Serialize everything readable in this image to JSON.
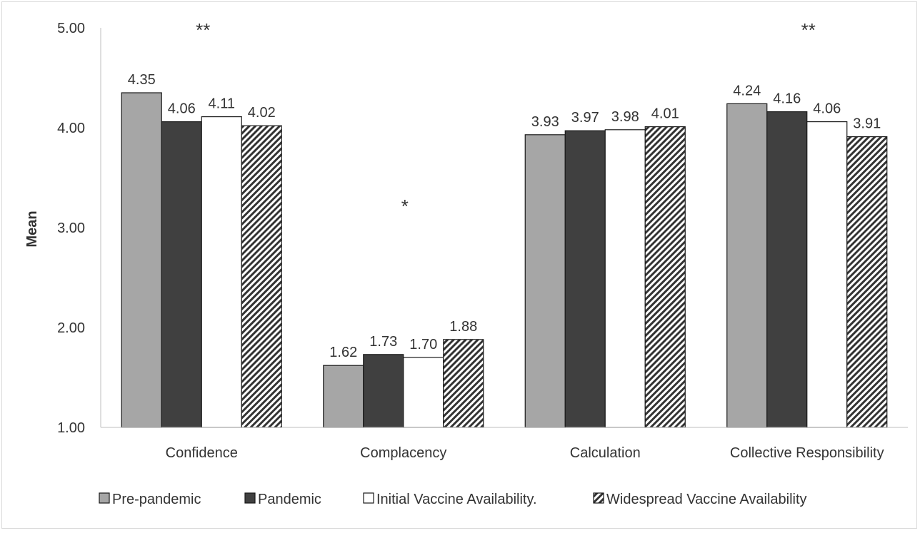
{
  "chart_data": {
    "type": "bar",
    "title": "",
    "xlabel": "",
    "ylabel": "Mean",
    "ylim": [
      1.0,
      5.0
    ],
    "yticks": [
      "1.00",
      "2.00",
      "3.00",
      "4.00",
      "5.00"
    ],
    "grid": false,
    "legend_position": "bottom",
    "categories": [
      "Confidence",
      "Complacency",
      "Calculation",
      "Collective Responsibility"
    ],
    "significance": [
      "**",
      "*",
      "",
      "**"
    ],
    "series": [
      {
        "name": "Pre-pandemic",
        "values": [
          4.35,
          1.62,
          3.93,
          4.24
        ],
        "labels": [
          "4.35",
          "1.62",
          "3.93",
          "4.24"
        ],
        "color": "#a6a6a6",
        "pattern": "solid"
      },
      {
        "name": "Pandemic",
        "values": [
          4.06,
          1.73,
          3.97,
          4.16
        ],
        "labels": [
          "4.06",
          "1.73",
          "3.97",
          "4.16"
        ],
        "color": "#404040",
        "pattern": "solid"
      },
      {
        "name": "Initial Vaccine Availability.",
        "values": [
          4.11,
          1.7,
          3.98,
          4.06
        ],
        "labels": [
          "4.11",
          "1.70",
          "3.98",
          "4.06"
        ],
        "color": "#ffffff",
        "pattern": "solid"
      },
      {
        "name": "Widespread Vaccine Availability",
        "values": [
          4.02,
          1.88,
          4.01,
          3.91
        ],
        "labels": [
          "4.02",
          "1.88",
          "4.01",
          "3.91"
        ],
        "color": "#333333",
        "pattern": "diagonal-hatch"
      }
    ]
  }
}
